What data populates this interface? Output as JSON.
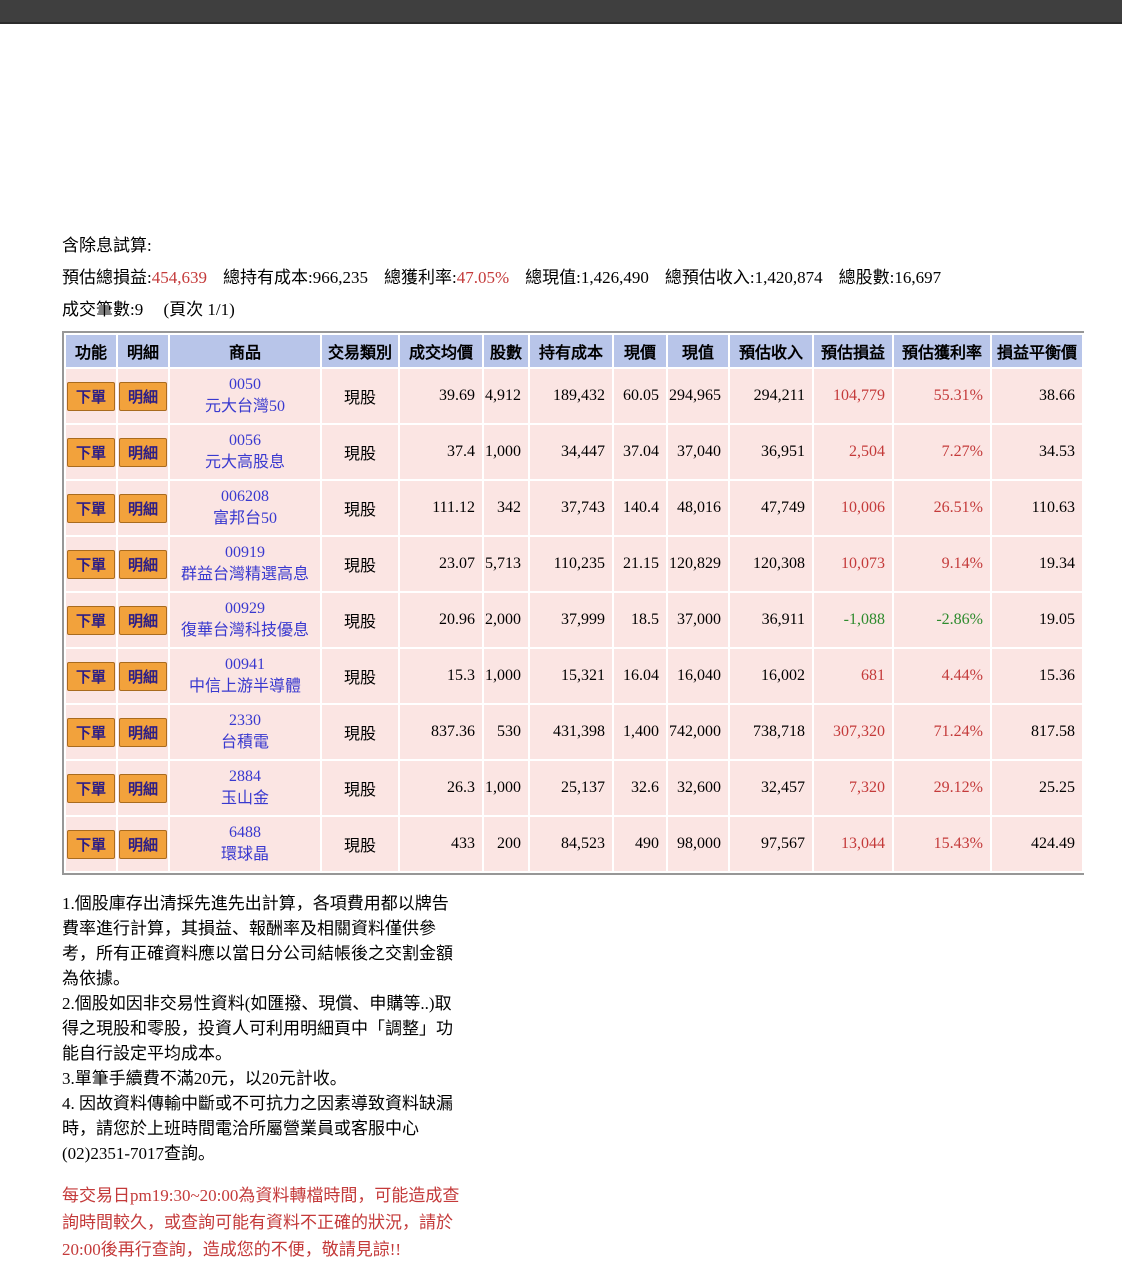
{
  "summary": {
    "title": "含除息試算:",
    "stats": [
      {
        "label": "預估總損益:",
        "value": "454,639",
        "highlight": true
      },
      {
        "label": "總持有成本:",
        "value": "966,235",
        "highlight": false
      },
      {
        "label": "總獲利率:",
        "value": "47.05%",
        "highlight": true
      },
      {
        "label": "總現值:",
        "value": "1,426,490",
        "highlight": false
      },
      {
        "label": "總預估收入:",
        "value": "1,420,874",
        "highlight": false
      },
      {
        "label": "總股數:",
        "value": "16,697",
        "highlight": false
      }
    ],
    "trades_label": "成交筆數:9",
    "page_label": "(頁次 1/1)"
  },
  "table": {
    "headers": [
      "功能",
      "明細",
      "商品",
      "交易類別",
      "成交均價",
      "股數",
      "持有成本",
      "現價",
      "現值",
      "預估收入",
      "預估損益",
      "預估獲利率",
      "損益平衡價"
    ],
    "order_button_label": "下單",
    "detail_button_label": "明細",
    "rows": [
      {
        "code": "0050",
        "name": "元大台灣50",
        "type": "現股",
        "avg_price": "39.69",
        "shares": "4,912",
        "cost": "189,432",
        "price": "60.05",
        "value": "294,965",
        "est_income": "294,211",
        "est_pl": "104,779",
        "est_rate": "55.31%",
        "breakeven": "38.66",
        "negative": false
      },
      {
        "code": "0056",
        "name": "元大高股息",
        "type": "現股",
        "avg_price": "37.4",
        "shares": "1,000",
        "cost": "34,447",
        "price": "37.04",
        "value": "37,040",
        "est_income": "36,951",
        "est_pl": "2,504",
        "est_rate": "7.27%",
        "breakeven": "34.53",
        "negative": false
      },
      {
        "code": "006208",
        "name": "富邦台50",
        "type": "現股",
        "avg_price": "111.12",
        "shares": "342",
        "cost": "37,743",
        "price": "140.4",
        "value": "48,016",
        "est_income": "47,749",
        "est_pl": "10,006",
        "est_rate": "26.51%",
        "breakeven": "110.63",
        "negative": false
      },
      {
        "code": "00919",
        "name": "群益台灣精選高息",
        "type": "現股",
        "avg_price": "23.07",
        "shares": "5,713",
        "cost": "110,235",
        "price": "21.15",
        "value": "120,829",
        "est_income": "120,308",
        "est_pl": "10,073",
        "est_rate": "9.14%",
        "breakeven": "19.34",
        "negative": false
      },
      {
        "code": "00929",
        "name": "復華台灣科技優息",
        "type": "現股",
        "avg_price": "20.96",
        "shares": "2,000",
        "cost": "37,999",
        "price": "18.5",
        "value": "37,000",
        "est_income": "36,911",
        "est_pl": "-1,088",
        "est_rate": "-2.86%",
        "breakeven": "19.05",
        "negative": true
      },
      {
        "code": "00941",
        "name": "中信上游半導體",
        "type": "現股",
        "avg_price": "15.3",
        "shares": "1,000",
        "cost": "15,321",
        "price": "16.04",
        "value": "16,040",
        "est_income": "16,002",
        "est_pl": "681",
        "est_rate": "4.44%",
        "breakeven": "15.36",
        "negative": false
      },
      {
        "code": "2330",
        "name": "台積電",
        "type": "現股",
        "avg_price": "837.36",
        "shares": "530",
        "cost": "431,398",
        "price": "1,400",
        "value": "742,000",
        "est_income": "738,718",
        "est_pl": "307,320",
        "est_rate": "71.24%",
        "breakeven": "817.58",
        "negative": false
      },
      {
        "code": "2884",
        "name": "玉山金",
        "type": "現股",
        "avg_price": "26.3",
        "shares": "1,000",
        "cost": "25,137",
        "price": "32.6",
        "value": "32,600",
        "est_income": "32,457",
        "est_pl": "7,320",
        "est_rate": "29.12%",
        "breakeven": "25.25",
        "negative": false
      },
      {
        "code": "6488",
        "name": "環球晶",
        "type": "現股",
        "avg_price": "433",
        "shares": "200",
        "cost": "84,523",
        "price": "490",
        "value": "98,000",
        "est_income": "97,567",
        "est_pl": "13,044",
        "est_rate": "15.43%",
        "breakeven": "424.49",
        "negative": false
      }
    ]
  },
  "notes": [
    "1.個股庫存出清採先進先出計算，各項費用都以牌告\n費率進行計算，其損益、報酬率及相關資料僅供參\n考，所有正確資料應以當日分公司結帳後之交割金額\n為依據。",
    "2.個股如因非交易性資料(如匯撥、現償、申購等..)取\n得之現股和零股，投資人可利用明細頁中「調整」功\n能自行設定平均成本。",
    "3.單筆手續費不滿20元，以20元計收。",
    "4. 因故資料傳輸中斷或不可抗力之因素導致資料缺漏\n時，請您於上班時間電洽所屬營業員或客服中心\n(02)2351-7017查詢。"
  ],
  "notice": "每交易日pm19:30~20:00為資料轉檔時間，可能造成查\n詢時間較久，或查詢可能有資料不正確的狀況，請於\n20:00後再行查詢，造成您的不便，敬請見諒!!",
  "colors": {
    "topbar": "#3f3f3f",
    "header_bg": "#b8c5e9",
    "row_bg": "#fbe5e3",
    "button_bg": "#f2a23c",
    "positive_red": "#c43a3a",
    "negative_green": "#2e8b2e",
    "stock_blue": "#3939cf"
  }
}
